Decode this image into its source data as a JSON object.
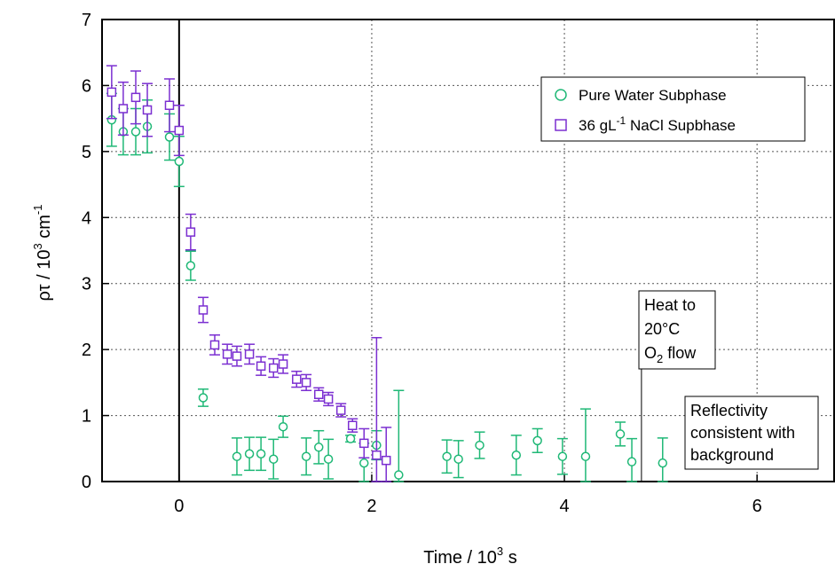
{
  "chart_data": {
    "type": "scatter",
    "title": "",
    "xlabel": {
      "text": "Time / 10",
      "sup": "3",
      "suffix": " s"
    },
    "ylabel": {
      "text": "ρτ / 10",
      "sup": "3",
      "mid": " cm",
      "sup2": "-1"
    },
    "xlim": [
      -0.8,
      6.8
    ],
    "ylim": [
      0,
      7
    ],
    "xticks": [
      0,
      2,
      4,
      6
    ],
    "yticks": [
      0,
      1,
      2,
      3,
      4,
      5,
      6,
      7
    ],
    "grid": true,
    "legend_position": "top-right",
    "series": [
      {
        "name": "Pure Water Subphase",
        "marker": "circle",
        "color": "#1fb876",
        "points": [
          {
            "x": -0.7,
            "y": 5.48,
            "err": 0.4
          },
          {
            "x": -0.58,
            "y": 5.3,
            "err": 0.35
          },
          {
            "x": -0.45,
            "y": 5.3,
            "err": 0.35
          },
          {
            "x": -0.33,
            "y": 5.38,
            "err": 0.4
          },
          {
            "x": -0.1,
            "y": 5.22,
            "err": 0.35
          },
          {
            "x": 0.0,
            "y": 4.85,
            "err": 0.38
          },
          {
            "x": 0.12,
            "y": 3.27,
            "err": 0.22
          },
          {
            "x": 0.25,
            "y": 1.27,
            "err": 0.13
          },
          {
            "x": 0.6,
            "y": 0.38,
            "err": 0.28
          },
          {
            "x": 0.73,
            "y": 0.42,
            "err": 0.25
          },
          {
            "x": 0.85,
            "y": 0.42,
            "err": 0.25
          },
          {
            "x": 0.98,
            "y": 0.34,
            "err": 0.3
          },
          {
            "x": 1.08,
            "y": 0.83,
            "err": 0.16
          },
          {
            "x": 1.32,
            "y": 0.38,
            "err": 0.28
          },
          {
            "x": 1.45,
            "y": 0.52,
            "err": 0.25
          },
          {
            "x": 1.55,
            "y": 0.34,
            "err": 0.3
          },
          {
            "x": 1.78,
            "y": 0.65,
            "err": 0.05
          },
          {
            "x": 1.92,
            "y": 0.28,
            "err": 0.3
          },
          {
            "x": 2.05,
            "y": 0.55,
            "err": 0.22
          },
          {
            "x": 2.28,
            "y": 0.1,
            "err": 1.28
          },
          {
            "x": 2.78,
            "y": 0.38,
            "err": 0.25
          },
          {
            "x": 2.9,
            "y": 0.34,
            "err": 0.28
          },
          {
            "x": 3.12,
            "y": 0.55,
            "err": 0.2
          },
          {
            "x": 3.5,
            "y": 0.4,
            "err": 0.3
          },
          {
            "x": 3.72,
            "y": 0.62,
            "err": 0.18
          },
          {
            "x": 3.98,
            "y": 0.38,
            "err": 0.27
          },
          {
            "x": 4.22,
            "y": 0.38,
            "err": 0.72
          },
          {
            "x": 4.58,
            "y": 0.72,
            "err": 0.18
          },
          {
            "x": 4.7,
            "y": 0.3,
            "err": 0.35
          },
          {
            "x": 5.02,
            "y": 0.28,
            "err": 0.38
          }
        ]
      },
      {
        "name": "36 gL-1 NaCl Supbhase",
        "marker": "square",
        "color": "#7b2fd1",
        "points": [
          {
            "x": -0.7,
            "y": 5.9,
            "err": 0.4
          },
          {
            "x": -0.58,
            "y": 5.65,
            "err": 0.4
          },
          {
            "x": -0.45,
            "y": 5.82,
            "err": 0.4
          },
          {
            "x": -0.33,
            "y": 5.63,
            "err": 0.4
          },
          {
            "x": -0.1,
            "y": 5.7,
            "err": 0.4
          },
          {
            "x": 0.0,
            "y": 5.32,
            "err": 0.38
          },
          {
            "x": 0.12,
            "y": 3.78,
            "err": 0.27
          },
          {
            "x": 0.25,
            "y": 2.6,
            "err": 0.19
          },
          {
            "x": 0.37,
            "y": 2.07,
            "err": 0.15
          },
          {
            "x": 0.5,
            "y": 1.93,
            "err": 0.15
          },
          {
            "x": 0.6,
            "y": 1.9,
            "err": 0.15
          },
          {
            "x": 0.73,
            "y": 1.93,
            "err": 0.15
          },
          {
            "x": 0.85,
            "y": 1.75,
            "err": 0.14
          },
          {
            "x": 0.98,
            "y": 1.72,
            "err": 0.14
          },
          {
            "x": 1.08,
            "y": 1.78,
            "err": 0.14
          },
          {
            "x": 1.22,
            "y": 1.55,
            "err": 0.12
          },
          {
            "x": 1.32,
            "y": 1.5,
            "err": 0.12
          },
          {
            "x": 1.45,
            "y": 1.32,
            "err": 0.1
          },
          {
            "x": 1.55,
            "y": 1.25,
            "err": 0.1
          },
          {
            "x": 1.68,
            "y": 1.08,
            "err": 0.1
          },
          {
            "x": 1.8,
            "y": 0.85,
            "err": 0.1
          },
          {
            "x": 1.92,
            "y": 0.58,
            "err": 0.22
          },
          {
            "x": 2.05,
            "y": 0.4,
            "err": 1.78
          },
          {
            "x": 2.15,
            "y": 0.32,
            "err": 0.5
          }
        ]
      }
    ],
    "annotations": [
      {
        "lines": [
          "Heat to",
          "20°C",
          "O2 flow"
        ],
        "x": 4.8,
        "line_top_y": 1.72,
        "line_bottom_y": 0
      },
      {
        "lines": [
          "Reflectivity",
          "consistent with",
          "background"
        ]
      }
    ]
  }
}
